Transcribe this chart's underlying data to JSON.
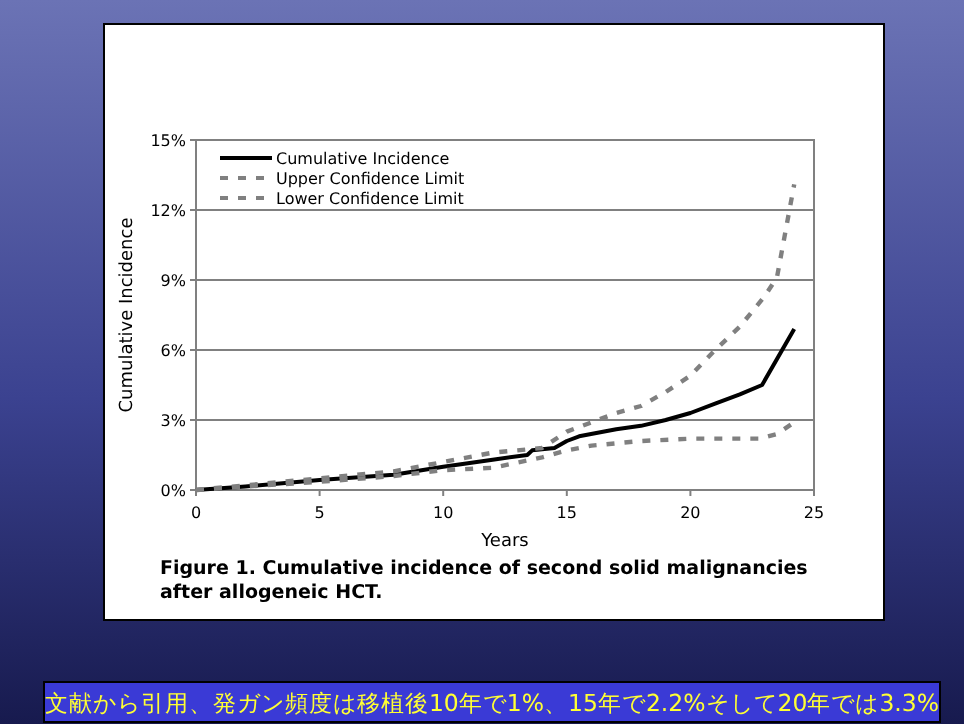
{
  "chart_data": {
    "type": "line",
    "title": "Figure 1. Cumulative incidence of second solid malignancies after allogeneic HCT.",
    "xlabel": "Years",
    "ylabel": "Cumulative Incidence",
    "annotations": [
      "文献から引用、発ガン頻度は移植後10年で1%、15年で2.2%そして20年では3.3%"
    ],
    "xlim": [
      0,
      25
    ],
    "xticks": [
      0,
      5,
      10,
      15,
      20,
      25
    ],
    "ylim": [
      0,
      15
    ],
    "yticks": [
      {
        "value": 0,
        "label": "0%"
      },
      {
        "value": 3,
        "label": "3%"
      },
      {
        "value": 6,
        "label": "6%"
      },
      {
        "value": 9,
        "label": "9%"
      },
      {
        "value": 12,
        "label": "12%"
      },
      {
        "value": 15,
        "label": "15%"
      }
    ],
    "grid": "y",
    "legend": "top left",
    "marker": "none",
    "series": [
      {
        "name": "Cumulative Incidence",
        "color": "#000000",
        "line_style": "solid",
        "x": [
          0,
          2,
          5,
          8,
          10,
          12,
          13.4,
          13.6,
          14.5,
          15,
          15.5,
          17,
          18,
          19,
          20,
          21,
          22,
          22.9,
          24.2
        ],
        "values": [
          0,
          0.15,
          0.43,
          0.65,
          1.0,
          1.3,
          1.5,
          1.7,
          1.8,
          2.1,
          2.3,
          2.6,
          2.75,
          3.0,
          3.3,
          3.7,
          4.1,
          4.5,
          6.9
        ]
      },
      {
        "name": "Upper Confidence Limit",
        "color": "#808080",
        "line_style": "dashed",
        "x": [
          0,
          2,
          5,
          8,
          10,
          12,
          14,
          15,
          16,
          17,
          18,
          19,
          20,
          21,
          22,
          23,
          23.5,
          24.2
        ],
        "values": [
          0,
          0.2,
          0.5,
          0.8,
          1.2,
          1.6,
          1.8,
          2.5,
          2.9,
          3.3,
          3.6,
          4.2,
          4.9,
          6.0,
          7.0,
          8.3,
          9.1,
          13.1
        ]
      },
      {
        "name": "Lower Confidence Limit",
        "color": "#808080",
        "line_style": "dashed",
        "x": [
          0,
          2,
          5,
          8,
          10,
          12,
          14,
          15,
          16,
          18,
          20,
          22.8,
          23.5,
          24.2
        ],
        "values": [
          0,
          0.15,
          0.35,
          0.6,
          0.85,
          0.95,
          1.4,
          1.7,
          1.9,
          2.1,
          2.2,
          2.2,
          2.4,
          2.9
        ]
      }
    ]
  }
}
